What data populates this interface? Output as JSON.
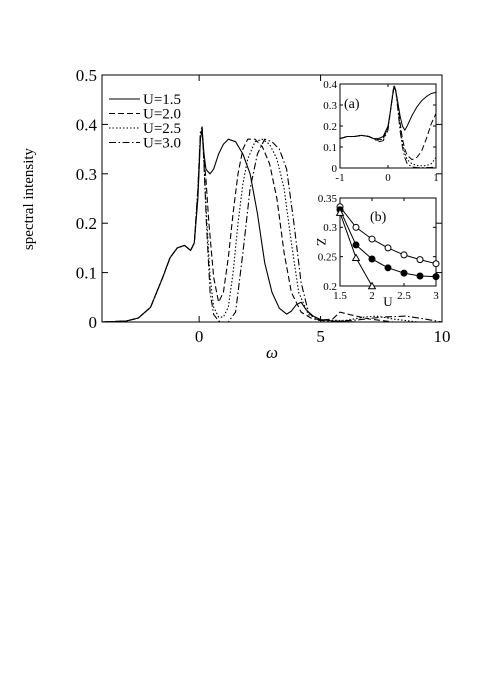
{
  "chart_data": [
    {
      "id": "main",
      "type": "line",
      "xlabel": "ω",
      "ylabel": "spectral intensity",
      "xlim": [
        -4,
        10
      ],
      "ylim": [
        0,
        0.5
      ],
      "xticks": [
        0,
        5,
        10
      ],
      "xtick_labels": [
        "0",
        "5",
        "10"
      ],
      "yticks": [
        0,
        0.1,
        0.2,
        0.3,
        0.4,
        0.5
      ],
      "ytick_labels": [
        "0",
        "0.1",
        "0.2",
        "0.3",
        "0.4",
        "0.5"
      ],
      "legend_position": "top-left",
      "series": [
        {
          "name": "U=1.5",
          "style": "solid",
          "x": [
            -4,
            -3,
            -2.5,
            -2,
            -1.5,
            -1.2,
            -0.9,
            -0.6,
            -0.35,
            -0.2,
            -0.05,
            0.05,
            0.12,
            0.2,
            0.28,
            0.35,
            0.45,
            0.6,
            0.8,
            1.0,
            1.2,
            1.5,
            1.8,
            2.1,
            2.4,
            2.7,
            3.0,
            3.3,
            3.6,
            3.8,
            4.0,
            4.2,
            4.4,
            4.7,
            5.0,
            5.5,
            6.0,
            6.5
          ],
          "y": [
            0.0,
            0.002,
            0.008,
            0.03,
            0.09,
            0.13,
            0.15,
            0.155,
            0.145,
            0.16,
            0.25,
            0.37,
            0.39,
            0.34,
            0.31,
            0.305,
            0.3,
            0.31,
            0.34,
            0.36,
            0.37,
            0.365,
            0.34,
            0.3,
            0.22,
            0.12,
            0.06,
            0.028,
            0.016,
            0.022,
            0.035,
            0.04,
            0.025,
            0.012,
            0.005,
            0.002,
            0.001,
            0.0
          ]
        },
        {
          "name": "U=2.0",
          "style": "dashed",
          "x": [
            -4,
            -3,
            -2.5,
            -2,
            -1.5,
            -1.2,
            -0.9,
            -0.6,
            -0.35,
            -0.2,
            -0.05,
            0.05,
            0.12,
            0.2,
            0.28,
            0.4,
            0.6,
            0.8,
            1.0,
            1.2,
            1.4,
            1.6,
            1.8,
            2.0,
            2.3,
            2.6,
            2.9,
            3.2,
            3.5,
            3.8,
            4.2,
            4.6,
            5.0,
            5.5,
            5.8,
            6.2,
            7.0,
            8.0
          ],
          "y": [
            0.0,
            0.002,
            0.008,
            0.03,
            0.09,
            0.13,
            0.15,
            0.155,
            0.145,
            0.16,
            0.26,
            0.375,
            0.39,
            0.33,
            0.29,
            0.2,
            0.09,
            0.04,
            0.06,
            0.13,
            0.22,
            0.3,
            0.35,
            0.37,
            0.37,
            0.355,
            0.32,
            0.25,
            0.14,
            0.06,
            0.02,
            0.008,
            0.004,
            0.006,
            0.02,
            0.015,
            0.006,
            0.0
          ]
        },
        {
          "name": "U=2.5",
          "style": "dotted",
          "x": [
            -4,
            -3,
            -2.5,
            -2,
            -1.5,
            -1.2,
            -0.9,
            -0.6,
            -0.35,
            -0.2,
            -0.05,
            0.05,
            0.12,
            0.2,
            0.3,
            0.45,
            0.6,
            0.8,
            1.0,
            1.2,
            1.4,
            1.6,
            1.8,
            2.0,
            2.3,
            2.6,
            2.9,
            3.2,
            3.5,
            3.8,
            4.1,
            4.5,
            5.0,
            6.0,
            6.8,
            7.3,
            8.0,
            9.0
          ],
          "y": [
            0.0,
            0.002,
            0.008,
            0.03,
            0.09,
            0.13,
            0.15,
            0.155,
            0.145,
            0.16,
            0.27,
            0.38,
            0.39,
            0.32,
            0.22,
            0.09,
            0.03,
            0.01,
            0.01,
            0.03,
            0.1,
            0.2,
            0.28,
            0.33,
            0.365,
            0.37,
            0.36,
            0.33,
            0.27,
            0.16,
            0.06,
            0.015,
            0.004,
            0.003,
            0.01,
            0.012,
            0.006,
            0.0
          ]
        },
        {
          "name": "U=3.0",
          "style": "dashdot",
          "x": [
            -4,
            -3,
            -2.5,
            -2,
            -1.5,
            -1.2,
            -0.9,
            -0.6,
            -0.35,
            -0.2,
            -0.05,
            0.05,
            0.12,
            0.2,
            0.3,
            0.45,
            0.6,
            0.8,
            1.0,
            1.2,
            1.5,
            1.8,
            2.1,
            2.4,
            2.7,
            3.0,
            3.3,
            3.6,
            3.9,
            4.2,
            4.5,
            4.8,
            5.5,
            6.5,
            7.5,
            8.5,
            9.3,
            10.0
          ],
          "y": [
            0.0,
            0.002,
            0.008,
            0.03,
            0.09,
            0.13,
            0.15,
            0.155,
            0.145,
            0.16,
            0.27,
            0.385,
            0.395,
            0.32,
            0.2,
            0.06,
            0.015,
            0.002,
            0.0,
            0.0,
            0.02,
            0.14,
            0.27,
            0.34,
            0.37,
            0.365,
            0.35,
            0.31,
            0.2,
            0.08,
            0.02,
            0.004,
            0.001,
            0.004,
            0.01,
            0.012,
            0.006,
            0.0
          ]
        }
      ]
    },
    {
      "id": "inset_a",
      "type": "line",
      "panel_label": "(a)",
      "xlim": [
        -1,
        1
      ],
      "ylim": [
        0,
        0.4
      ],
      "xticks": [
        -1,
        0,
        1
      ],
      "xtick_labels": [
        "-1",
        "0",
        "1"
      ],
      "yticks": [
        0,
        0.1,
        0.2,
        0.3,
        0.4
      ],
      "ytick_labels": [
        "0",
        "0.1",
        "0.2",
        "0.3",
        "0.4"
      ],
      "series": [
        {
          "name": "U=1.5",
          "style": "solid",
          "x": [
            -1,
            -0.85,
            -0.7,
            -0.55,
            -0.4,
            -0.3,
            -0.2,
            -0.1,
            0,
            0.05,
            0.1,
            0.13,
            0.16,
            0.2,
            0.25,
            0.3,
            0.35,
            0.4,
            0.5,
            0.6,
            0.7,
            0.8,
            0.9,
            1.0
          ],
          "y": [
            0.14,
            0.15,
            0.15,
            0.155,
            0.15,
            0.14,
            0.14,
            0.15,
            0.2,
            0.27,
            0.35,
            0.385,
            0.37,
            0.32,
            0.25,
            0.2,
            0.18,
            0.2,
            0.25,
            0.29,
            0.32,
            0.34,
            0.355,
            0.36
          ]
        },
        {
          "name": "U=2.0",
          "style": "dashed",
          "x": [
            -1,
            -0.85,
            -0.7,
            -0.55,
            -0.4,
            -0.3,
            -0.2,
            -0.1,
            0,
            0.05,
            0.1,
            0.13,
            0.16,
            0.2,
            0.25,
            0.3,
            0.35,
            0.4,
            0.5,
            0.6,
            0.7,
            0.8,
            0.9,
            1.0
          ],
          "y": [
            0.14,
            0.15,
            0.15,
            0.155,
            0.15,
            0.14,
            0.135,
            0.14,
            0.19,
            0.27,
            0.35,
            0.39,
            0.37,
            0.31,
            0.22,
            0.14,
            0.09,
            0.06,
            0.04,
            0.05,
            0.08,
            0.14,
            0.21,
            0.26
          ]
        },
        {
          "name": "U=2.5",
          "style": "dotted",
          "x": [
            -1,
            -0.85,
            -0.7,
            -0.55,
            -0.4,
            -0.3,
            -0.2,
            -0.1,
            0,
            0.05,
            0.1,
            0.13,
            0.16,
            0.2,
            0.25,
            0.3,
            0.35,
            0.4,
            0.5,
            0.6,
            0.7,
            0.8,
            0.9,
            1.0
          ],
          "y": [
            0.14,
            0.15,
            0.15,
            0.155,
            0.15,
            0.14,
            0.13,
            0.14,
            0.19,
            0.27,
            0.355,
            0.39,
            0.37,
            0.3,
            0.2,
            0.12,
            0.07,
            0.04,
            0.02,
            0.012,
            0.01,
            0.012,
            0.02,
            0.05
          ]
        },
        {
          "name": "U=3.0",
          "style": "dashdot",
          "x": [
            -1,
            -0.85,
            -0.7,
            -0.55,
            -0.4,
            -0.3,
            -0.2,
            -0.1,
            0,
            0.05,
            0.1,
            0.13,
            0.16,
            0.2,
            0.25,
            0.3,
            0.35,
            0.4,
            0.5,
            0.6,
            0.7,
            0.8,
            0.9,
            1.0
          ],
          "y": [
            0.14,
            0.15,
            0.15,
            0.155,
            0.15,
            0.14,
            0.125,
            0.13,
            0.18,
            0.27,
            0.36,
            0.395,
            0.37,
            0.29,
            0.18,
            0.1,
            0.05,
            0.02,
            0.005,
            0.002,
            0.002,
            0.002,
            0.003,
            0.005
          ]
        }
      ]
    },
    {
      "id": "inset_b",
      "type": "scatter",
      "panel_label": "(b)",
      "xlabel": "U",
      "ylabel": "Z",
      "xlim": [
        1.5,
        3
      ],
      "ylim": [
        0.2,
        0.35
      ],
      "xticks": [
        1.5,
        2,
        2.5,
        3
      ],
      "xtick_labels": [
        "1.5",
        "2",
        "2.5",
        "3"
      ],
      "yticks": [
        0.2,
        0.25,
        0.3,
        0.35
      ],
      "ytick_labels": [
        "0.2",
        "0.25",
        "0.3",
        "0.35"
      ],
      "series": [
        {
          "marker": "open-circle",
          "x": [
            1.5,
            1.75,
            2.0,
            2.25,
            2.5,
            2.75,
            3.0
          ],
          "y": [
            0.335,
            0.3,
            0.28,
            0.265,
            0.253,
            0.245,
            0.238
          ]
        },
        {
          "marker": "filled-circle",
          "x": [
            1.5,
            1.75,
            2.0,
            2.25,
            2.5,
            2.75,
            3.0
          ],
          "y": [
            0.33,
            0.27,
            0.246,
            0.231,
            0.222,
            0.217,
            0.216
          ]
        },
        {
          "marker": "open-triangle",
          "x": [
            1.5,
            1.75,
            2.0
          ],
          "y": [
            0.325,
            0.248,
            0.2
          ]
        }
      ]
    }
  ]
}
